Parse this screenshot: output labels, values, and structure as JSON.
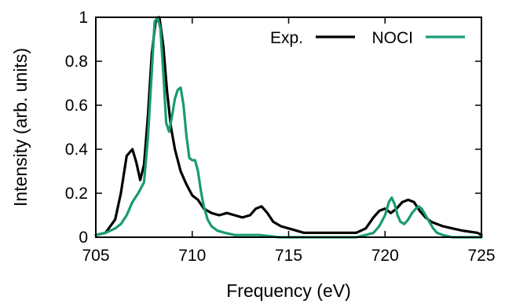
{
  "chart_data": {
    "type": "line",
    "title": "",
    "xlabel": "Frequency (eV)",
    "ylabel": "Intensity (arb. units)",
    "xlim": [
      705,
      725
    ],
    "ylim": [
      0,
      1
    ],
    "xticks": [
      "705",
      "710",
      "715",
      "720",
      "725"
    ],
    "yticks": [
      "0",
      "0.2",
      "0.4",
      "0.6",
      "0.8",
      "1"
    ],
    "grid": false,
    "legend_position": "top-right",
    "series": [
      {
        "name": "Exp.",
        "color": "#000000",
        "x": [
          705.0,
          705.5,
          706.0,
          706.3,
          706.6,
          706.9,
          707.1,
          707.3,
          707.5,
          707.7,
          707.9,
          708.1,
          708.3,
          708.5,
          708.7,
          708.9,
          709.1,
          709.4,
          709.7,
          710.0,
          710.3,
          710.6,
          711.0,
          711.4,
          711.8,
          712.2,
          712.6,
          713.0,
          713.3,
          713.6,
          713.9,
          714.2,
          714.6,
          715.0,
          715.4,
          715.8,
          716.2,
          716.6,
          717.0,
          717.5,
          718.0,
          718.5,
          719.0,
          719.4,
          719.7,
          720.0,
          720.3,
          720.6,
          720.9,
          721.2,
          721.5,
          721.8,
          722.1,
          722.4,
          722.7,
          723.0,
          723.5,
          724.0,
          724.4,
          724.8,
          725.0
        ],
        "values": [
          0.01,
          0.02,
          0.08,
          0.2,
          0.37,
          0.4,
          0.34,
          0.26,
          0.33,
          0.55,
          0.83,
          0.98,
          1.0,
          0.87,
          0.66,
          0.5,
          0.4,
          0.3,
          0.24,
          0.19,
          0.17,
          0.13,
          0.11,
          0.1,
          0.11,
          0.1,
          0.09,
          0.1,
          0.13,
          0.14,
          0.11,
          0.07,
          0.05,
          0.04,
          0.03,
          0.02,
          0.02,
          0.02,
          0.02,
          0.02,
          0.02,
          0.02,
          0.04,
          0.09,
          0.12,
          0.13,
          0.11,
          0.13,
          0.16,
          0.17,
          0.16,
          0.12,
          0.09,
          0.07,
          0.06,
          0.05,
          0.04,
          0.03,
          0.025,
          0.02,
          0.01
        ]
      },
      {
        "name": "NOCI",
        "color": "#1a9a74",
        "x": [
          705.0,
          705.5,
          706.0,
          706.3,
          706.6,
          706.9,
          707.2,
          707.5,
          707.7,
          707.9,
          708.05,
          708.2,
          708.35,
          708.5,
          708.65,
          708.8,
          708.95,
          709.1,
          709.25,
          709.4,
          709.55,
          709.7,
          709.85,
          710.0,
          710.15,
          710.3,
          710.45,
          710.6,
          710.8,
          711.0,
          711.3,
          711.7,
          712.2,
          712.8,
          713.5,
          714.5,
          715.5,
          716.5,
          717.5,
          718.5,
          719.0,
          719.4,
          719.7,
          720.0,
          720.2,
          720.35,
          720.5,
          720.65,
          720.8,
          721.0,
          721.2,
          721.4,
          721.6,
          721.75,
          721.9,
          722.1,
          722.3,
          722.5,
          722.7,
          723.0,
          723.5,
          724.0,
          725.0
        ],
        "values": [
          0.01,
          0.02,
          0.04,
          0.06,
          0.1,
          0.16,
          0.2,
          0.25,
          0.45,
          0.75,
          0.98,
          1.0,
          0.95,
          0.75,
          0.52,
          0.48,
          0.55,
          0.63,
          0.67,
          0.68,
          0.6,
          0.46,
          0.36,
          0.35,
          0.35,
          0.3,
          0.21,
          0.14,
          0.08,
          0.05,
          0.03,
          0.02,
          0.01,
          0.01,
          0.01,
          0.0,
          0.0,
          0.0,
          0.0,
          0.0,
          0.01,
          0.02,
          0.05,
          0.1,
          0.16,
          0.18,
          0.15,
          0.1,
          0.07,
          0.06,
          0.08,
          0.11,
          0.13,
          0.14,
          0.13,
          0.1,
          0.07,
          0.04,
          0.02,
          0.01,
          0.0,
          0.0,
          0.0
        ]
      }
    ]
  }
}
